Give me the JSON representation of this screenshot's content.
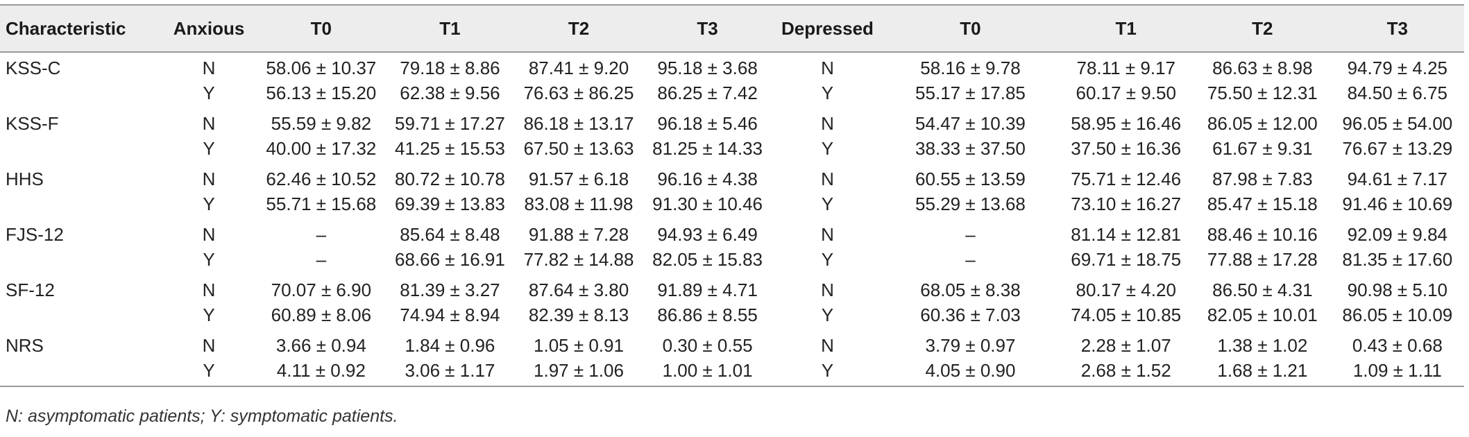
{
  "table": {
    "headers": [
      "Characteristic",
      "Anxious",
      "T0",
      "T1",
      "T2",
      "T3",
      "Depressed",
      "T0",
      "T1",
      "T2",
      "T3"
    ],
    "rows": [
      [
        "KSS-C",
        "N",
        "58.06 ± 10.37",
        "79.18 ± 8.86",
        "87.41 ± 9.20",
        "95.18 ± 3.68",
        "N",
        "58.16 ± 9.78",
        "78.11 ± 9.17",
        "86.63 ± 8.98",
        "94.79 ± 4.25"
      ],
      [
        "",
        "Y",
        "56.13 ± 15.20",
        "62.38 ± 9.56",
        "76.63 ± 86.25",
        "86.25 ± 7.42",
        "Y",
        "55.17 ± 17.85",
        "60.17 ± 9.50",
        "75.50 ± 12.31",
        "84.50 ± 6.75"
      ],
      [
        "KSS-F",
        "N",
        "55.59 ± 9.82",
        "59.71 ± 17.27",
        "86.18 ± 13.17",
        "96.18 ± 5.46",
        "N",
        "54.47 ± 10.39",
        "58.95 ± 16.46",
        "86.05 ± 12.00",
        "96.05 ± 54.00"
      ],
      [
        "",
        "Y",
        "40.00 ± 17.32",
        "41.25 ± 15.53",
        "67.50 ± 13.63",
        "81.25 ± 14.33",
        "Y",
        "38.33 ± 37.50",
        "37.50 ± 16.36",
        "61.67 ± 9.31",
        "76.67 ± 13.29"
      ],
      [
        "HHS",
        "N",
        "62.46 ± 10.52",
        "80.72 ± 10.78",
        "91.57 ± 6.18",
        "96.16 ± 4.38",
        "N",
        "60.55 ± 13.59",
        "75.71 ± 12.46",
        "87.98 ± 7.83",
        "94.61 ± 7.17"
      ],
      [
        "",
        "Y",
        "55.71 ± 15.68",
        "69.39 ± 13.83",
        "83.08 ± 11.98",
        "91.30 ± 10.46",
        "Y",
        "55.29 ± 13.68",
        "73.10 ± 16.27",
        "85.47 ± 15.18",
        "91.46 ± 10.69"
      ],
      [
        "FJS-12",
        "N",
        "–",
        "85.64 ± 8.48",
        "91.88 ± 7.28",
        "94.93 ± 6.49",
        "N",
        "–",
        "81.14 ± 12.81",
        "88.46 ± 10.16",
        "92.09 ± 9.84"
      ],
      [
        "",
        "Y",
        "–",
        "68.66 ± 16.91",
        "77.82 ± 14.88",
        "82.05 ± 15.83",
        "Y",
        "–",
        "69.71 ± 18.75",
        "77.88 ± 17.28",
        "81.35 ± 17.60"
      ],
      [
        "SF-12",
        "N",
        "70.07 ± 6.90",
        "81.39 ± 3.27",
        "87.64 ± 3.80",
        "91.89 ± 4.71",
        "N",
        "68.05 ± 8.38",
        "80.17 ± 4.20",
        "86.50 ± 4.31",
        "90.98 ± 5.10"
      ],
      [
        "",
        "Y",
        "60.89 ± 8.06",
        "74.94 ± 8.94",
        "82.39 ± 8.13",
        "86.86 ± 8.55",
        "Y",
        "60.36 ± 7.03",
        "74.05 ± 10.85",
        "82.05 ± 10.01",
        "86.05 ± 10.09"
      ],
      [
        "NRS",
        "N",
        "3.66 ± 0.94",
        "1.84 ± 0.96",
        "1.05 ± 0.91",
        "0.30 ± 0.55",
        "N",
        "3.79 ± 0.97",
        "2.28 ± 1.07",
        "1.38 ± 1.02",
        "0.43 ± 0.68"
      ],
      [
        "",
        "Y",
        "4.11 ± 0.92",
        "3.06 ± 1.17",
        "1.97 ± 1.06",
        "1.00 ± 1.01",
        "Y",
        "4.05 ± 0.90",
        "2.68 ± 1.52",
        "1.68 ± 1.21",
        "1.09 ± 1.11"
      ]
    ],
    "footnote": "N: asymptomatic patients; Y: symptomatic patients."
  }
}
